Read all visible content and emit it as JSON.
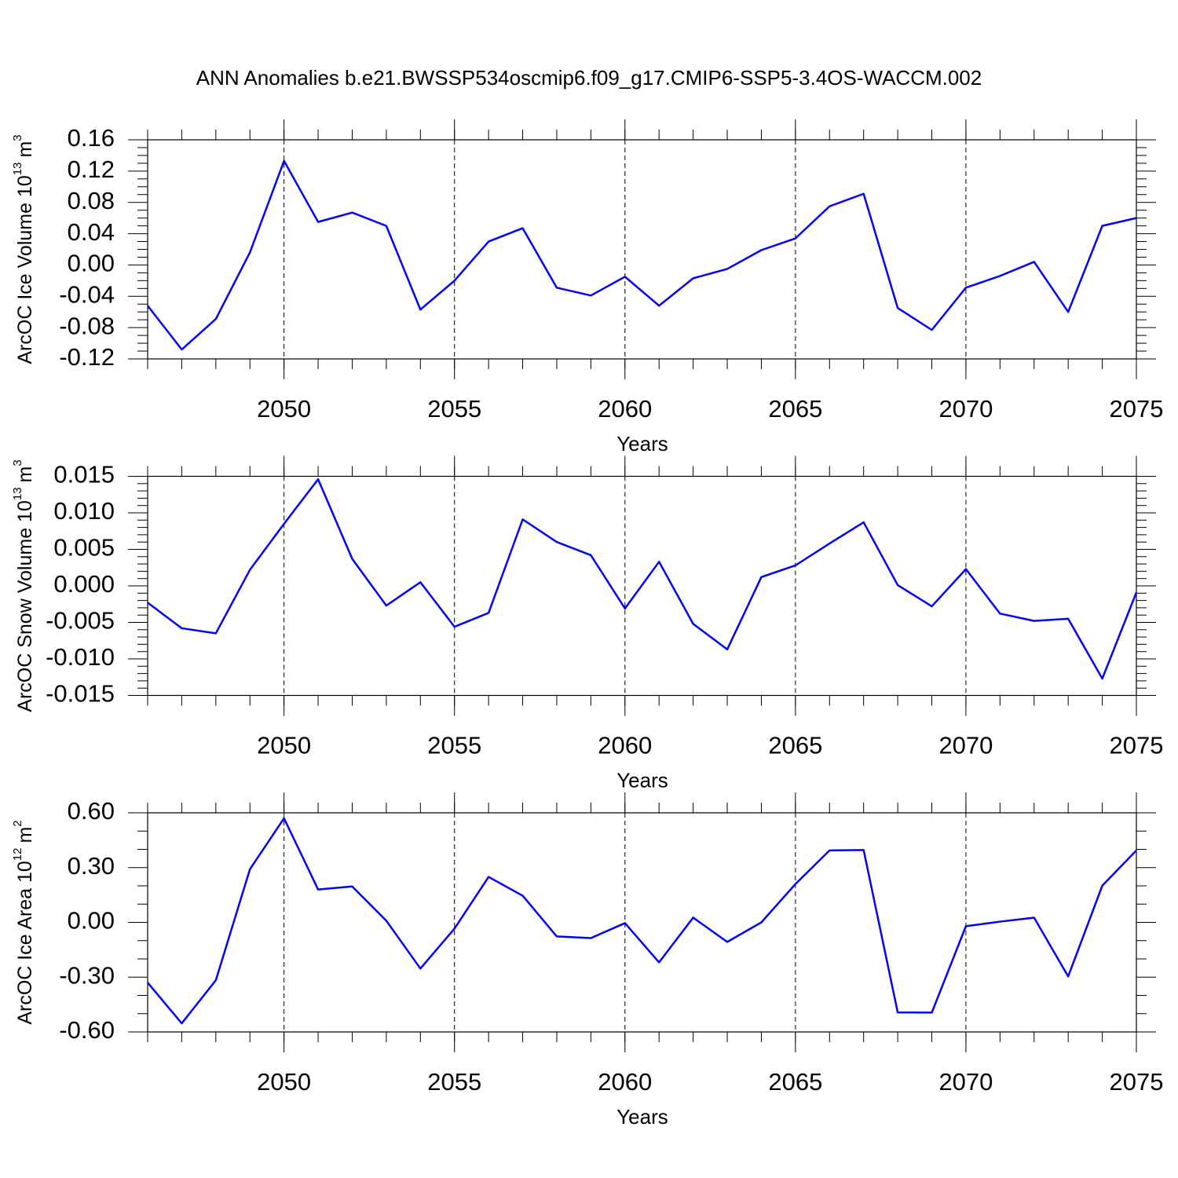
{
  "chart_data": [
    {
      "type": "line",
      "title": "ANN Anomalies b.e21.BWSSP534oscmip6.f09_g17.CMIP6-SSP5-3.4OS-WACCM.002",
      "ylabel": "ArcOC Ice Volume 10",
      "ylabel_sup": "13",
      "ylabel_unit": "m",
      "ylabel_unit_sup": "3",
      "xlabel": "Years",
      "x": [
        2046,
        2047,
        2048,
        2049,
        2050,
        2051,
        2052,
        2053,
        2054,
        2055,
        2056,
        2057,
        2058,
        2059,
        2060,
        2061,
        2062,
        2063,
        2064,
        2065,
        2066,
        2067,
        2068,
        2069,
        2070,
        2071,
        2072,
        2073,
        2074,
        2075
      ],
      "series": [
        {
          "color": "#0000ff",
          "values": [
            -0.052,
            -0.108,
            -0.069,
            0.016,
            0.133,
            0.055,
            0.067,
            0.05,
            -0.057,
            -0.02,
            0.03,
            0.047,
            -0.029,
            -0.039,
            -0.015,
            -0.052,
            -0.017,
            -0.005,
            0.019,
            0.034,
            0.075,
            0.091,
            -0.055,
            -0.083,
            -0.029,
            -0.014,
            0.004,
            -0.06,
            0.05,
            0.06
          ]
        }
      ],
      "xlim": [
        2046,
        2075
      ],
      "xticks": [
        2050,
        2055,
        2060,
        2065,
        2070,
        2075
      ],
      "ylim": [
        -0.12,
        0.16
      ],
      "yticks": [
        0.16,
        0.12,
        0.08,
        0.04,
        {
          "value": 0,
          "label": "0.00"
        },
        -0.04,
        -0.08,
        -0.12
      ],
      "yminorticks": [
        -0.11,
        -0.1,
        -0.09,
        -0.07,
        -0.06,
        -0.05,
        -0.03,
        -0.02,
        -0.01,
        0.01,
        0.02,
        0.03,
        0.05,
        0.06,
        0.07,
        0.09,
        0.1,
        0.11,
        0.13,
        0.14,
        0.15
      ],
      "grid": "x-dashed"
    },
    {
      "type": "line",
      "ylabel": "ArcOC Snow Volume 10",
      "ylabel_sup": "13",
      "ylabel_unit": "m",
      "ylabel_unit_sup": "3",
      "xlabel": "Years",
      "x": [
        2046,
        2047,
        2048,
        2049,
        2050,
        2051,
        2052,
        2053,
        2054,
        2055,
        2056,
        2057,
        2058,
        2059,
        2060,
        2061,
        2062,
        2063,
        2064,
        2065,
        2066,
        2067,
        2068,
        2069,
        2070,
        2071,
        2072,
        2073,
        2074,
        2075
      ],
      "series": [
        {
          "color": "#0000ff",
          "values": [
            -0.0023,
            -0.0058,
            -0.0065,
            0.0022,
            0.0085,
            0.0146,
            0.0037,
            -0.0027,
            0.0005,
            -0.0056,
            -0.0037,
            0.0091,
            0.006,
            0.0042,
            -0.0031,
            0.0033,
            -0.0052,
            -0.0087,
            0.0012,
            0.0028,
            0.0058,
            0.0087,
            0.0001,
            -0.0028,
            0.0023,
            -0.0038,
            -0.0048,
            -0.0045,
            -0.0127,
            -0.0009
          ]
        }
      ],
      "xlim": [
        2046,
        2075
      ],
      "xticks": [
        2050,
        2055,
        2060,
        2065,
        2070,
        2075
      ],
      "ylim": [
        -0.015,
        0.015
      ],
      "yticks": [
        0.015,
        {
          "value": 0.01,
          "label": "0.010"
        },
        0.005,
        {
          "value": 0,
          "label": "0.000"
        },
        -0.005,
        {
          "value": -0.01,
          "label": "-0.010"
        },
        -0.015
      ],
      "yminorticks": [
        -0.014,
        -0.013,
        -0.012,
        -0.011,
        -0.009,
        -0.008,
        -0.007,
        -0.006,
        -0.004,
        -0.003,
        -0.002,
        -0.001,
        0.001,
        0.002,
        0.003,
        0.004,
        0.006,
        0.007,
        0.008,
        0.009,
        0.011,
        0.012,
        0.013,
        0.014
      ],
      "grid": "x-dashed"
    },
    {
      "type": "line",
      "ylabel": "ArcOC Ice Area 10",
      "ylabel_sup": "12",
      "ylabel_unit": "m",
      "ylabel_unit_sup": "2",
      "xlabel": "Years",
      "x": [
        2046,
        2047,
        2048,
        2049,
        2050,
        2051,
        2052,
        2053,
        2054,
        2055,
        2056,
        2057,
        2058,
        2059,
        2060,
        2061,
        2062,
        2063,
        2064,
        2065,
        2066,
        2067,
        2068,
        2069,
        2070,
        2071,
        2072,
        2073,
        2074,
        2075
      ],
      "series": [
        {
          "color": "#0000ff",
          "values": [
            -0.33,
            -0.553,
            -0.317,
            0.291,
            0.57,
            0.18,
            0.197,
            0.009,
            -0.253,
            -0.034,
            0.249,
            0.146,
            -0.077,
            -0.086,
            -0.004,
            -0.219,
            0.026,
            -0.107,
            0.0,
            0.21,
            0.394,
            0.396,
            -0.493,
            -0.494,
            -0.021,
            0.004,
            0.026,
            -0.296,
            0.201,
            0.394
          ]
        }
      ],
      "xlim": [
        2046,
        2075
      ],
      "xticks": [
        2050,
        2055,
        2060,
        2065,
        2070,
        2075
      ],
      "ylim": [
        -0.6,
        0.6
      ],
      "yticks": [
        {
          "value": 0.6,
          "label": "0.60"
        },
        {
          "value": 0.3,
          "label": "0.30"
        },
        {
          "value": 0,
          "label": "0.00"
        },
        {
          "value": -0.3,
          "label": "-0.30"
        },
        {
          "value": -0.6,
          "label": "-0.60"
        }
      ],
      "yminorticks": [
        -0.5,
        -0.4,
        -0.2,
        -0.1,
        0.1,
        0.2,
        0.4,
        0.5
      ],
      "grid": "x-dashed"
    }
  ]
}
